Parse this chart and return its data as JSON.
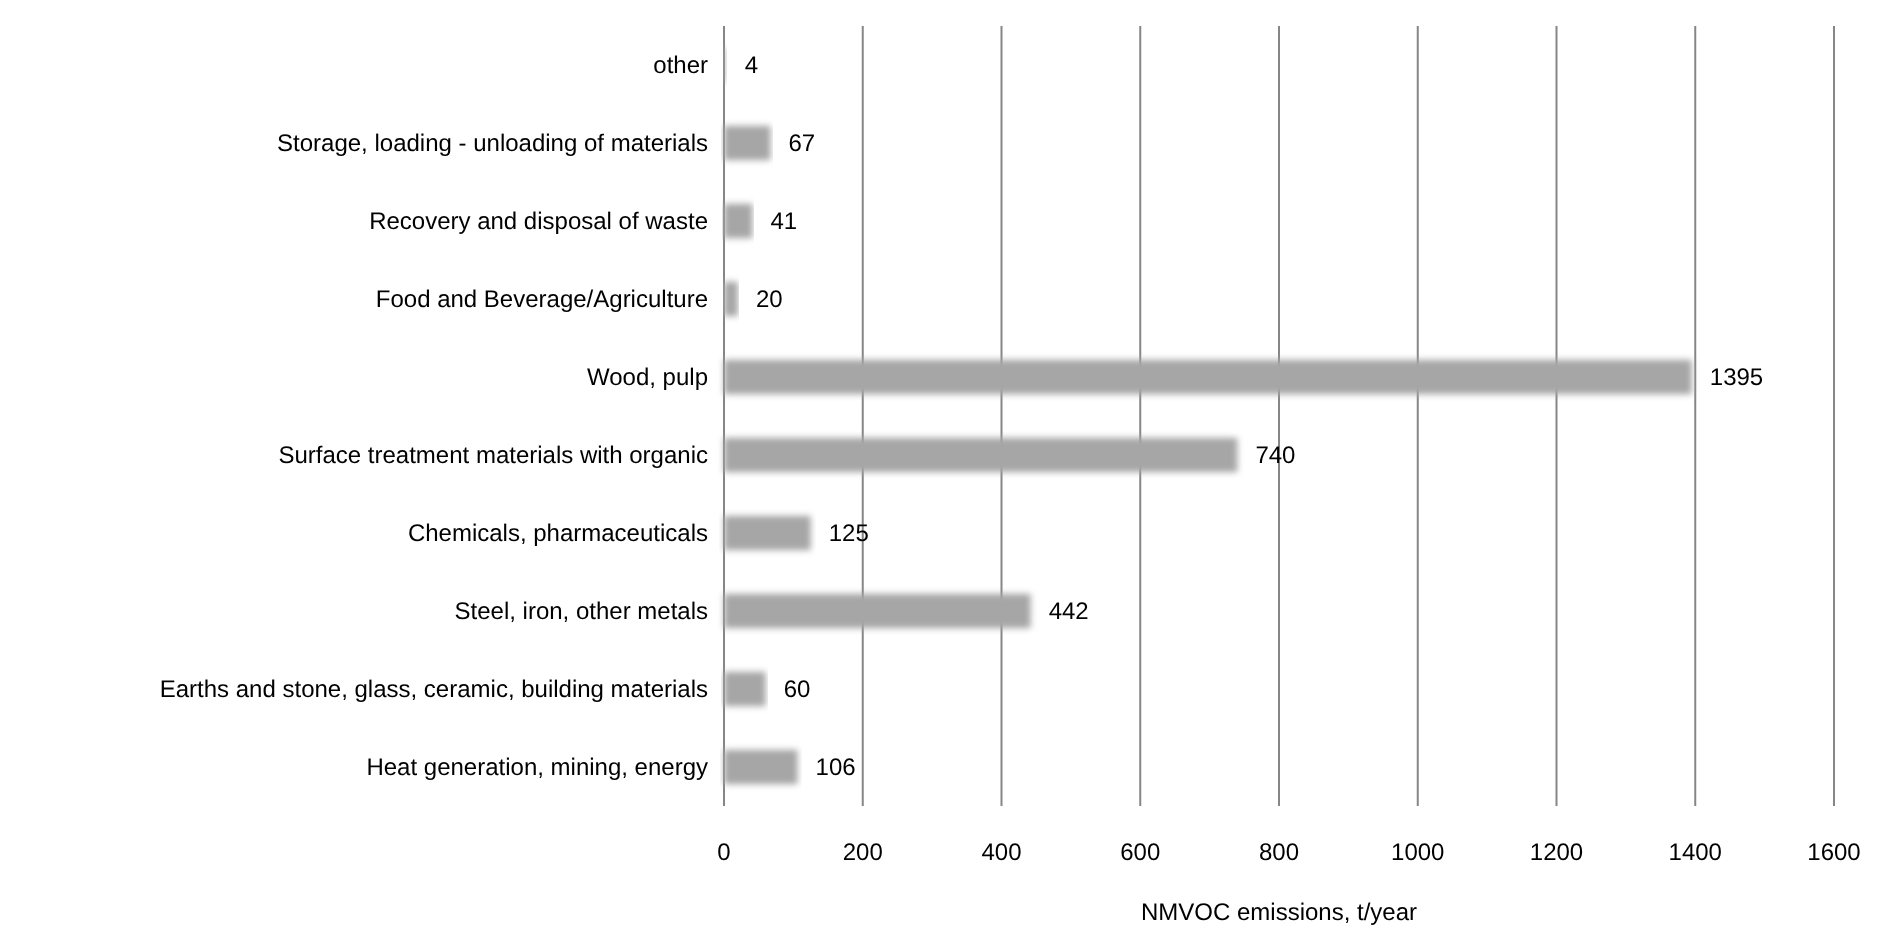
{
  "chart_data": {
    "type": "bar",
    "orientation": "horizontal",
    "xlabel": "NMVOC emissions, t/year",
    "categories": [
      "other",
      "Storage, loading - unloading of materials",
      "Recovery and disposal of waste",
      "Food and Beverage/Agriculture",
      "Wood, pulp",
      "Surface treatment materials with organic",
      "Chemicals, pharmaceuticals",
      "Steel, iron, other metals",
      "Earths and stone, glass, ceramic, building materials",
      "Heat generation, mining, energy"
    ],
    "values": [
      4,
      67,
      41,
      20,
      1395,
      740,
      125,
      442,
      60,
      106
    ],
    "color": "#a6a6a6",
    "xlim": [
      0,
      1600
    ],
    "xticks": [
      0,
      200,
      400,
      600,
      800,
      1000,
      1200,
      1400,
      1600
    ],
    "grid": "x",
    "data_labels": true
  }
}
